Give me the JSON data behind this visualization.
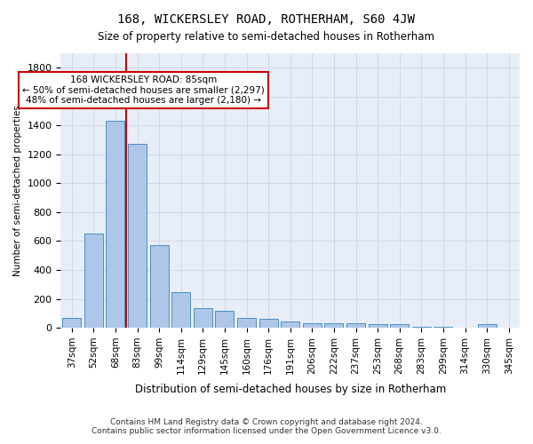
{
  "title": "168, WICKERSLEY ROAD, ROTHERHAM, S60 4JW",
  "subtitle": "Size of property relative to semi-detached houses in Rotherham",
  "xlabel": "Distribution of semi-detached houses by size in Rotherham",
  "ylabel": "Number of semi-detached properties",
  "categories": [
    "37sqm",
    "52sqm",
    "68sqm",
    "83sqm",
    "99sqm",
    "114sqm",
    "129sqm",
    "145sqm",
    "160sqm",
    "176sqm",
    "191sqm",
    "206sqm",
    "222sqm",
    "237sqm",
    "253sqm",
    "268sqm",
    "283sqm",
    "299sqm",
    "314sqm",
    "330sqm",
    "345sqm"
  ],
  "values": [
    65,
    655,
    1430,
    1275,
    575,
    245,
    135,
    115,
    65,
    60,
    45,
    30,
    30,
    30,
    25,
    25,
    5,
    5,
    0,
    25,
    0
  ],
  "bar_color": "#aec6e8",
  "bar_edge_color": "#4a90c4",
  "vline_x": 3,
  "vline_color": "#cc0000",
  "annotation_text": "168 WICKERSLEY ROAD: 85sqm\n← 50% of semi-detached houses are smaller (2,297)\n48% of semi-detached houses are larger (2,180) →",
  "annotation_box_color": "#ffffff",
  "annotation_box_edge": "#cc0000",
  "ylim": [
    0,
    1900
  ],
  "yticks": [
    0,
    200,
    400,
    600,
    800,
    1000,
    1200,
    1400,
    1600,
    1800
  ],
  "grid_color": "#d0d8e8",
  "background_color": "#e8eef8",
  "footer_line1": "Contains HM Land Registry data © Crown copyright and database right 2024.",
  "footer_line2": "Contains public sector information licensed under the Open Government Licence v3.0."
}
